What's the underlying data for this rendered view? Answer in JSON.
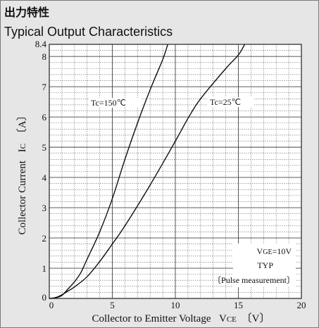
{
  "title": "出力特性",
  "subtitle": "Typical Output Characteristics",
  "chart_data": {
    "type": "line",
    "xlabel_main": "Collector to Emitter Voltage",
    "xlabel_sym_main": "V",
    "xlabel_sym_sub": "CE",
    "xlabel_unit": "〔V〕",
    "ylabel_main": "Collector Current",
    "ylabel_sym_main": "I",
    "ylabel_sym_sub": "C",
    "ylabel_unit": "〔A〕",
    "xlim": [
      0,
      20
    ],
    "ylim": [
      0,
      8.4
    ],
    "xticks": [
      0,
      5,
      10,
      15,
      20
    ],
    "yticks": [
      0,
      1,
      2,
      3,
      4,
      5,
      6,
      7,
      8,
      8.4
    ],
    "grid": true,
    "series": [
      {
        "name": "Tc=150℃",
        "label_main": "Tc",
        "label_rest": "=150℃",
        "x": [
          0,
          0.5,
          1.0,
          1.5,
          2.0,
          2.5,
          3.0,
          4.0,
          5.0,
          6.0,
          7.0,
          8.0,
          9.0,
          9.4
        ],
        "y": [
          0,
          0.02,
          0.1,
          0.32,
          0.55,
          0.85,
          1.3,
          2.2,
          3.3,
          4.6,
          5.8,
          6.9,
          7.9,
          8.4
        ]
      },
      {
        "name": "Tc=25℃",
        "label_main": "Tc",
        "label_rest": "=25℃",
        "x": [
          0,
          0.5,
          1.0,
          1.5,
          2.0,
          3.0,
          4.0,
          5.0,
          6.0,
          8.0,
          10.0,
          11.0,
          12.0,
          14.0,
          15.0,
          15.5
        ],
        "y": [
          0,
          0.03,
          0.12,
          0.25,
          0.38,
          0.72,
          1.22,
          1.8,
          2.4,
          3.75,
          5.2,
          5.95,
          6.6,
          7.6,
          8.05,
          8.4
        ]
      }
    ],
    "annotations": {
      "vge_main": "V",
      "vge_sub": "GE",
      "vge_rest": "=10V",
      "typ": "TYP",
      "pulse": "〔Pulse measurement〕"
    }
  }
}
